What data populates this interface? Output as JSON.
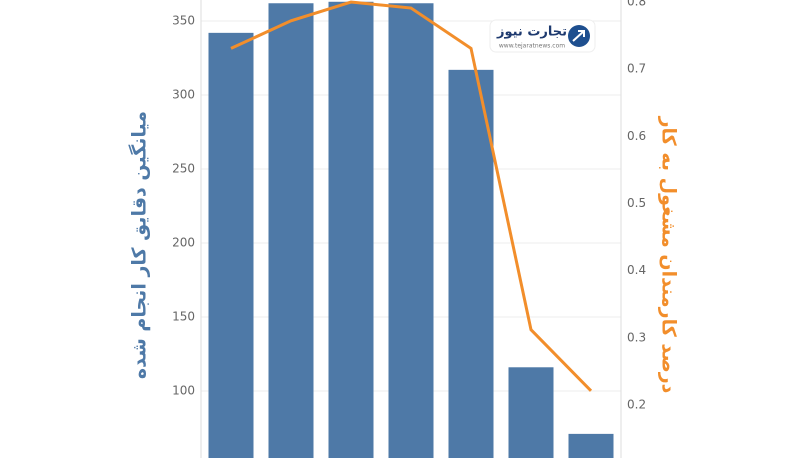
{
  "chart_data": {
    "type": "bar",
    "y_label": "میانگین دقایق کار انجام شده",
    "y2_label": "درصد کارمندان مشغول به کار",
    "logo": {
      "name": "تجارت نیوز",
      "url": "www.tejaratnews.com"
    },
    "categories": [
      null,
      null,
      null,
      null,
      null,
      null,
      null
    ],
    "series": [
      {
        "type": "bar",
        "color": "#4e79a7",
        "values": [
          342,
          362,
          363,
          362,
          317,
          116,
          71
        ]
      },
      {
        "type": "line",
        "axis": "y2",
        "color": "#f28e2b",
        "values": [
          0.731,
          0.772,
          0.8,
          0.791,
          0.731,
          0.312,
          0.221
        ]
      }
    ],
    "ylim": [
      54.7,
      364.2
    ],
    "yticks": [
      100,
      150,
      200,
      250,
      300,
      350
    ],
    "y2lim": [
      0.121,
      0.803
    ],
    "y2ticks": [
      0.2,
      0.3,
      0.4,
      0.5,
      0.6,
      0.7,
      0.8
    ],
    "grid": true
  }
}
